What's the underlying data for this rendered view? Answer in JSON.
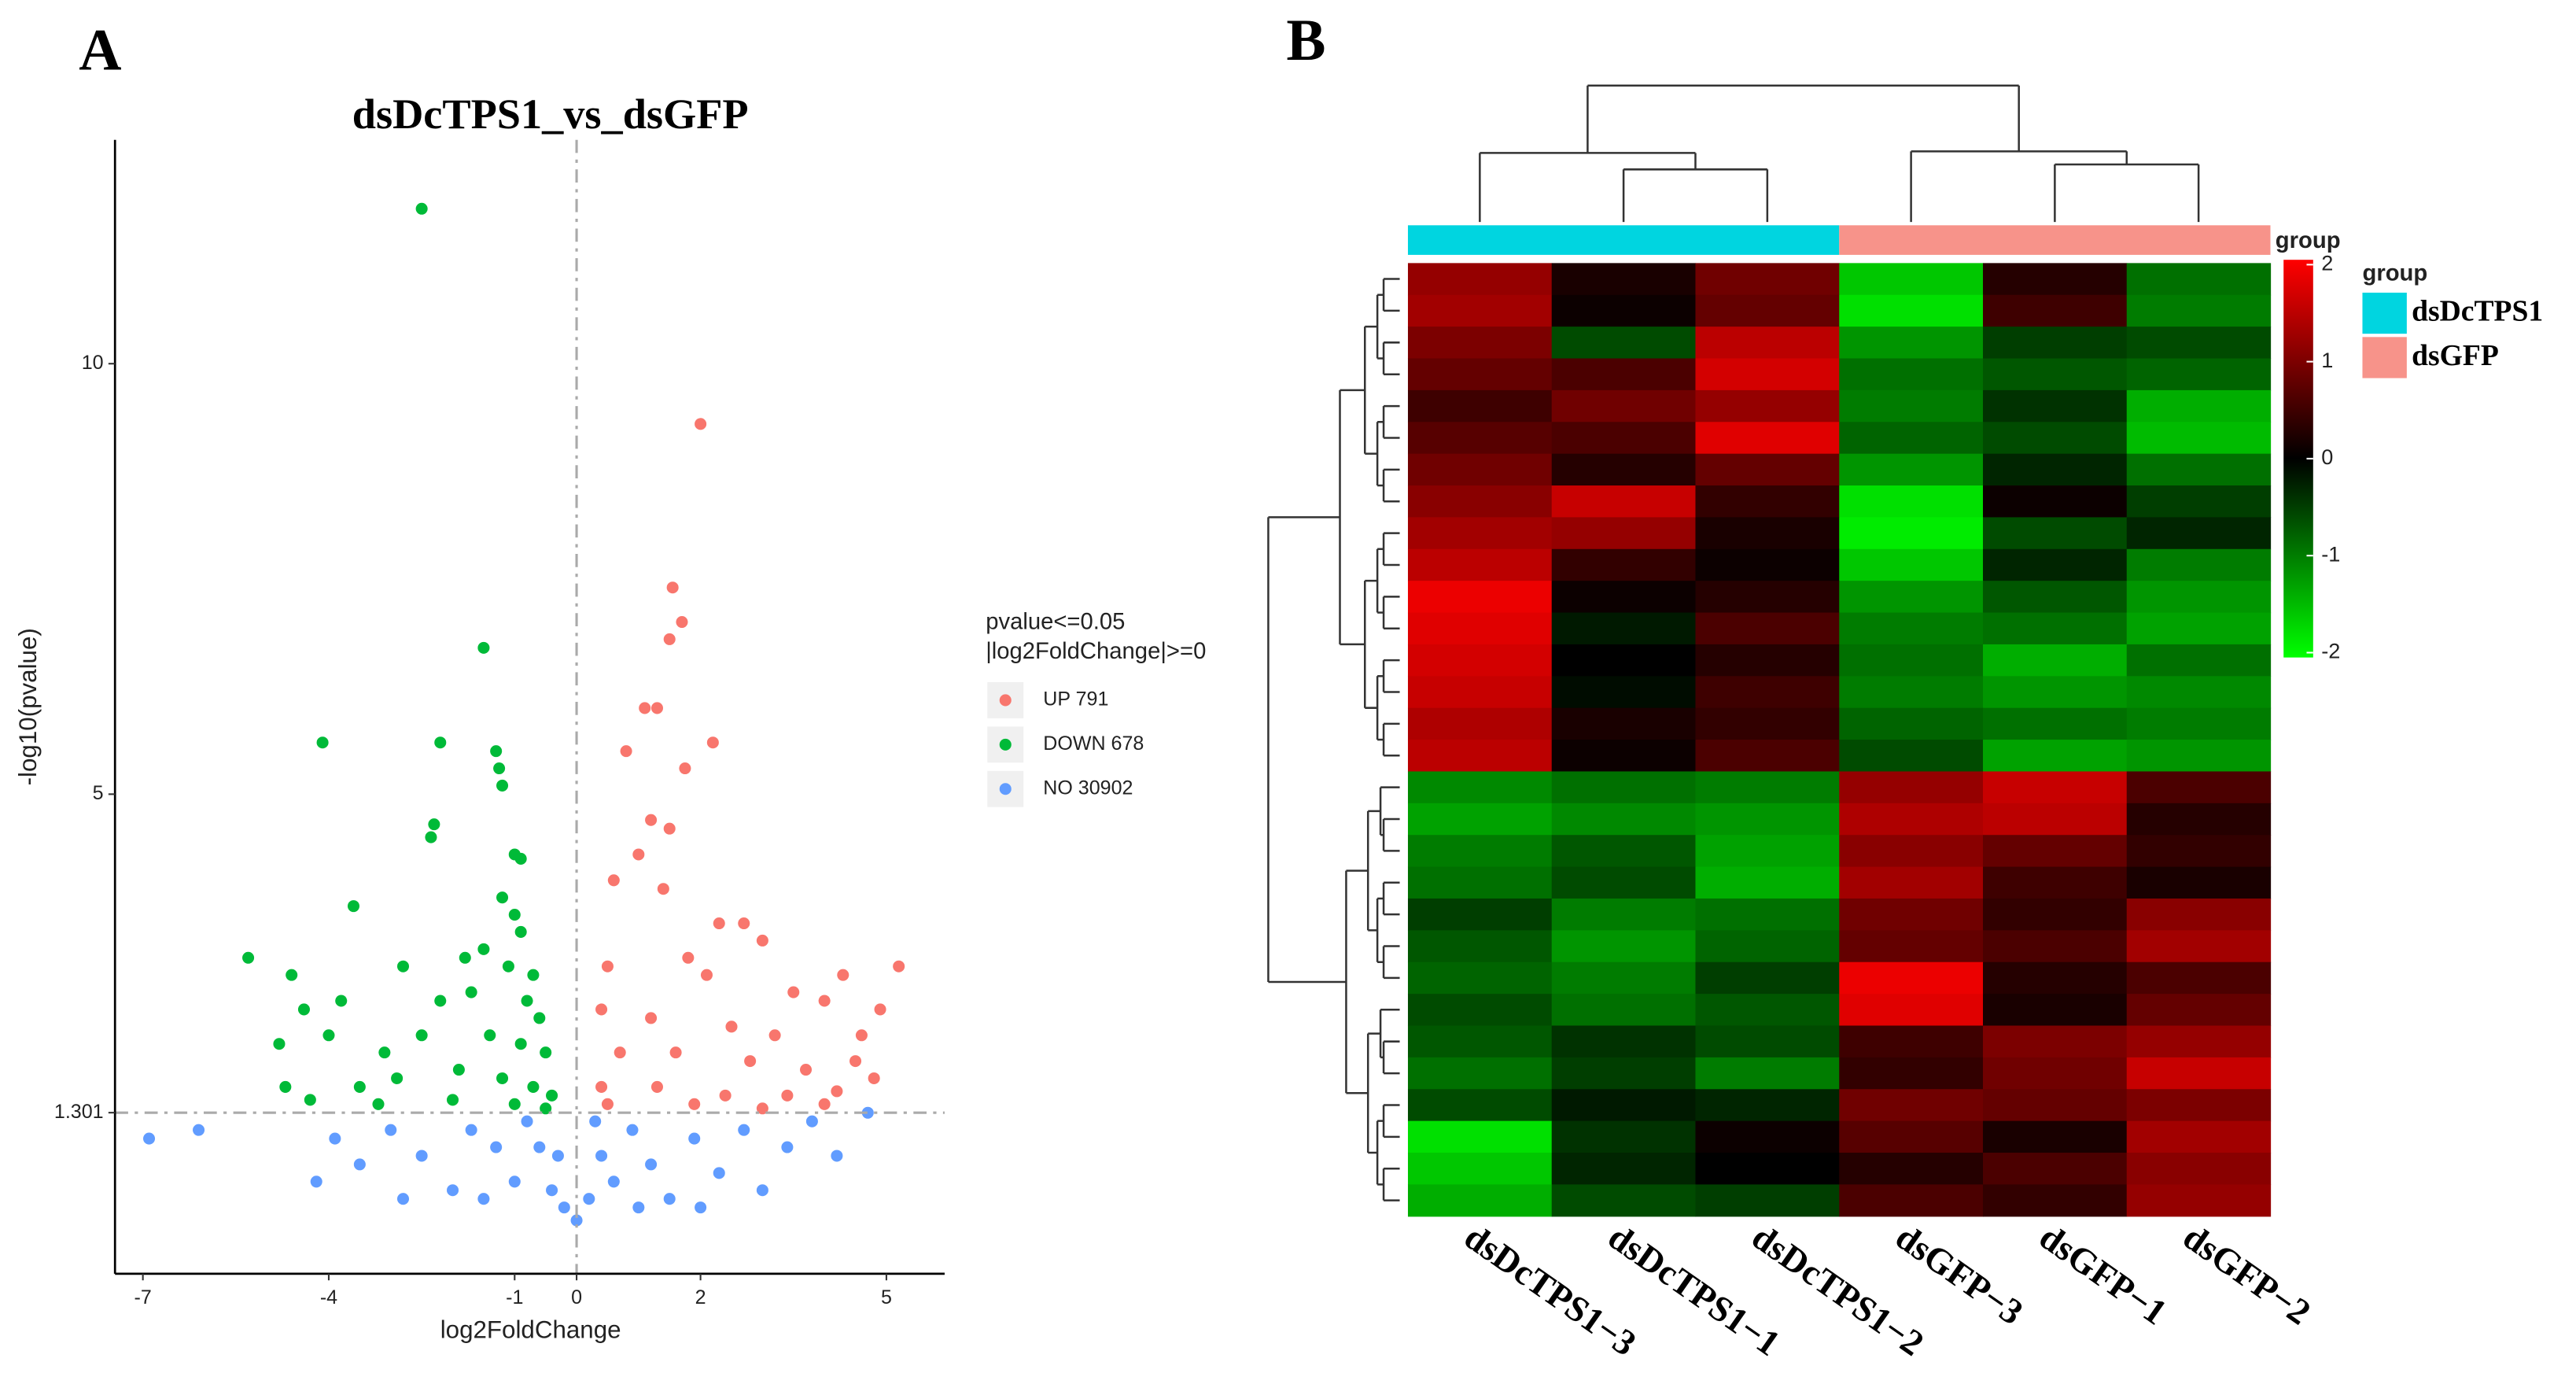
{
  "chart_data": [
    {
      "type": "scatter",
      "panel_label": "A",
      "title": "dsDcTPS1_vs_dsGFP",
      "xlabel": "log2FoldChange",
      "ylabel": "-log10(pvalue)",
      "xlim": [
        -7.45,
        5.94
      ],
      "ylim": [
        -0.57,
        12.6
      ],
      "xticks": [
        -7,
        -4,
        -1,
        0,
        2,
        5
      ],
      "yticks": [
        1.301,
        5,
        10
      ],
      "hline": 1.301,
      "vline": 0,
      "legend_title": [
        "pvalue<=0.05",
        "|log2FoldChange|>=0"
      ],
      "series": [
        {
          "name": "UP 791",
          "color": "#f8766d",
          "x": [
            2.0,
            1.55,
            1.7,
            1.5,
            1.1,
            1.3,
            2.2,
            0.8,
            1.75,
            1.5,
            1.2,
            1.0,
            0.6,
            1.4,
            2.3,
            2.7,
            3.0,
            5.2,
            4.3,
            0.5,
            1.8,
            2.1,
            3.5,
            4.0,
            4.9,
            0.4,
            1.2,
            2.5,
            3.2,
            4.6,
            0.7,
            1.6,
            2.8,
            3.7,
            4.5,
            4.8,
            0.4,
            1.3,
            2.4,
            3.4,
            4.2,
            0.5,
            1.9,
            3.0,
            4.0
          ],
          "values": [
            9.3,
            7.4,
            7.0,
            6.8,
            6.0,
            6.0,
            5.6,
            5.5,
            5.3,
            4.6,
            4.7,
            4.3,
            4.0,
            3.9,
            3.5,
            3.5,
            3.3,
            3.0,
            2.9,
            3.0,
            3.1,
            2.9,
            2.7,
            2.6,
            2.5,
            2.5,
            2.4,
            2.3,
            2.2,
            2.2,
            2.0,
            2.0,
            1.9,
            1.8,
            1.9,
            1.7,
            1.6,
            1.6,
            1.5,
            1.5,
            1.55,
            1.4,
            1.4,
            1.35,
            1.4
          ]
        },
        {
          "name": "DOWN 678",
          "color": "#00ba38",
          "x": [
            -2.5,
            -1.5,
            -4.1,
            -2.2,
            -1.3,
            -1.25,
            -1.2,
            -2.3,
            -2.35,
            -1.0,
            -0.9,
            -3.6,
            -1.2,
            -1.0,
            -0.9,
            -5.3,
            -4.6,
            -2.8,
            -1.8,
            -1.5,
            -1.1,
            -0.7,
            -4.4,
            -3.8,
            -2.2,
            -1.7,
            -0.8,
            -0.6,
            -4.8,
            -4.0,
            -3.1,
            -2.5,
            -1.4,
            -0.9,
            -0.5,
            -4.7,
            -3.5,
            -2.9,
            -1.9,
            -1.2,
            -0.7,
            -0.4,
            -4.3,
            -3.2,
            -2.0,
            -1.0,
            -0.5
          ],
          "values": [
            11.8,
            6.7,
            5.6,
            5.6,
            5.5,
            5.3,
            5.1,
            4.65,
            4.5,
            4.3,
            4.25,
            3.7,
            3.8,
            3.6,
            3.4,
            3.1,
            2.9,
            3.0,
            3.1,
            3.2,
            3.0,
            2.9,
            2.5,
            2.6,
            2.6,
            2.7,
            2.6,
            2.4,
            2.1,
            2.2,
            2.0,
            2.2,
            2.2,
            2.1,
            2.0,
            1.6,
            1.6,
            1.7,
            1.8,
            1.7,
            1.6,
            1.5,
            1.45,
            1.4,
            1.45,
            1.4,
            1.35
          ]
        },
        {
          "name": "NO 30902",
          "color": "#619cff",
          "x": [
            -6.9,
            -6.1,
            4.7,
            -4.2,
            -3.9,
            -3.5,
            -3.0,
            -2.5,
            -2.0,
            -1.7,
            -1.3,
            -1.0,
            -0.6,
            -0.4,
            -0.2,
            0,
            0.2,
            0.4,
            0.6,
            0.9,
            1.2,
            1.5,
            1.9,
            2.3,
            2.7,
            3.0,
            3.4,
            3.8,
            4.2,
            -0.8,
            -1.5,
            -2.8,
            1.0,
            2.0,
            -0.3,
            0.3
          ],
          "values": [
            1.0,
            1.1,
            1.3,
            0.5,
            1.0,
            0.7,
            1.1,
            0.8,
            0.4,
            1.1,
            0.9,
            0.5,
            0.9,
            0.4,
            0.2,
            0.05,
            0.3,
            0.8,
            0.5,
            1.1,
            0.7,
            0.3,
            1.0,
            0.6,
            1.1,
            0.4,
            0.9,
            1.2,
            0.8,
            1.2,
            0.3,
            0.3,
            0.2,
            0.2,
            0.8,
            1.2
          ]
        }
      ]
    },
    {
      "type": "heatmap",
      "panel_label": "B",
      "categories": [
        "dsDcTPS1−3",
        "dsDcTPS1−1",
        "dsDcTPS1−2",
        "dsGFP−3",
        "dsGFP−1",
        "dsGFP−2"
      ],
      "annotation_label": "group",
      "legend_title": "group",
      "groups": [
        {
          "name": "dsDcTPS1",
          "color": "#00d5e0"
        },
        {
          "name": "dsGFP",
          "color": "#f7938a"
        }
      ],
      "colors": {
        "low": "#00ff00",
        "mid": "#000000",
        "high": "#ff0000"
      },
      "colorlim": [
        -2.05,
        2.05
      ],
      "colorbar_ticks": [
        -2,
        -1,
        0,
        1,
        2
      ],
      "values": [
        [
          1.2,
          0.2,
          0.9,
          -1.6,
          0.3,
          -0.9
        ],
        [
          1.3,
          0.1,
          0.8,
          -1.8,
          0.5,
          -1.0
        ],
        [
          1.0,
          -0.6,
          1.5,
          -1.2,
          -0.5,
          -0.6
        ],
        [
          0.8,
          0.6,
          1.7,
          -0.9,
          -0.7,
          -0.8
        ],
        [
          0.5,
          0.9,
          1.2,
          -1.0,
          -0.4,
          -1.4
        ],
        [
          0.7,
          0.6,
          1.8,
          -0.8,
          -0.6,
          -1.5
        ],
        [
          0.9,
          0.3,
          0.8,
          -1.2,
          -0.3,
          -0.9
        ],
        [
          1.1,
          1.6,
          0.4,
          -1.8,
          0.1,
          -0.5
        ],
        [
          1.3,
          1.2,
          0.2,
          -1.9,
          -0.6,
          -0.3
        ],
        [
          1.5,
          0.4,
          0.1,
          -1.6,
          -0.3,
          -1.0
        ],
        [
          1.9,
          0.1,
          0.3,
          -1.2,
          -0.7,
          -1.2
        ],
        [
          1.8,
          -0.2,
          0.6,
          -1.0,
          -0.9,
          -1.3
        ],
        [
          1.7,
          0.0,
          0.3,
          -0.9,
          -1.4,
          -0.9
        ],
        [
          1.6,
          -0.1,
          0.5,
          -1.0,
          -1.2,
          -1.1
        ],
        [
          1.4,
          0.2,
          0.4,
          -0.8,
          -0.9,
          -1.0
        ],
        [
          1.5,
          0.1,
          0.6,
          -0.6,
          -1.3,
          -1.2
        ],
        [
          -1.1,
          -0.9,
          -1.0,
          1.2,
          1.6,
          0.6
        ],
        [
          -1.3,
          -1.1,
          -1.2,
          1.4,
          1.5,
          0.3
        ],
        [
          -1.0,
          -0.7,
          -1.3,
          1.1,
          0.8,
          0.4
        ],
        [
          -0.9,
          -0.6,
          -1.4,
          1.3,
          0.5,
          0.2
        ],
        [
          -0.5,
          -1.0,
          -0.9,
          0.9,
          0.4,
          1.1
        ],
        [
          -0.7,
          -1.2,
          -0.8,
          0.8,
          0.6,
          1.3
        ],
        [
          -0.8,
          -1.0,
          -0.5,
          1.9,
          0.3,
          0.6
        ],
        [
          -0.6,
          -0.9,
          -0.7,
          1.8,
          0.2,
          0.8
        ],
        [
          -0.7,
          -0.4,
          -0.6,
          0.5,
          1.0,
          1.2
        ],
        [
          -0.9,
          -0.5,
          -1.0,
          0.4,
          0.9,
          1.6
        ],
        [
          -0.6,
          -0.2,
          -0.3,
          0.9,
          0.8,
          1.0
        ],
        [
          -1.8,
          -0.4,
          0.1,
          0.7,
          0.2,
          1.3
        ],
        [
          -1.6,
          -0.3,
          0.0,
          0.3,
          0.6,
          1.1
        ],
        [
          -1.4,
          -0.6,
          -0.5,
          0.6,
          0.4,
          1.2
        ]
      ]
    }
  ]
}
